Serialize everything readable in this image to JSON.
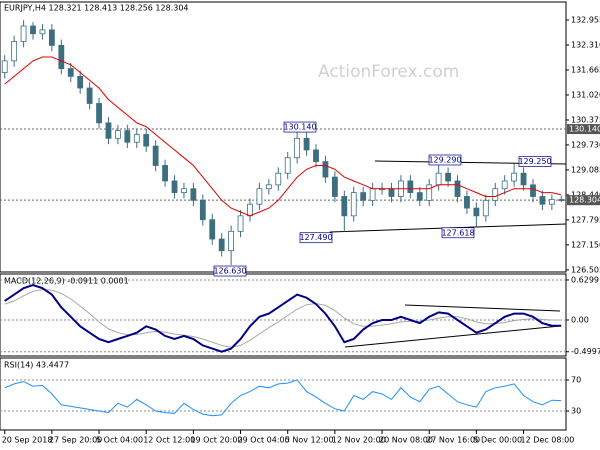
{
  "chart_data": [
    {
      "type": "candlestick",
      "title": "EURJPY,H4 128.321 128.413 128.256 128.304",
      "watermark": "ActionForex.com",
      "color": "#3d6e80",
      "categories": [
        "20 Sep 2018",
        null,
        null,
        null,
        null,
        "27 Sep 20:00",
        null,
        null,
        null,
        null,
        "5 Oct 04:00",
        null,
        null,
        null,
        null,
        "12 Oct 12:00",
        null,
        null,
        null,
        null,
        "19 Oct 20:00",
        null,
        null,
        null,
        null,
        "29 Oct 04:00",
        null,
        null,
        null,
        null,
        "5 Nov 12:00",
        null,
        null,
        null,
        null,
        "12 Nov 20:00",
        null,
        null,
        null,
        null,
        "20 Nov 08:00",
        null,
        null,
        null,
        null,
        "27 Nov 16:00",
        null,
        null,
        null,
        null,
        "5 Dec 00:00",
        null,
        null,
        null,
        null,
        "12 Dec 08:00",
        null,
        null,
        null,
        null
      ],
      "open": [
        131.6,
        131.9,
        132.4,
        132.8,
        132.6,
        132.7,
        132.3,
        131.7,
        131.5,
        131.2,
        130.8,
        130.3,
        129.9,
        130.1,
        129.8,
        130.0,
        129.7,
        129.2,
        128.8,
        128.5,
        128.6,
        128.3,
        127.8,
        127.3,
        127.0,
        127.5,
        127.9,
        128.2,
        128.6,
        128.7,
        129.0,
        129.4,
        129.9,
        129.6,
        129.3,
        128.9,
        128.4,
        127.9,
        128.5,
        128.3,
        128.6,
        128.6,
        128.4,
        128.8,
        128.5,
        128.3,
        128.7,
        129.0,
        128.8,
        128.4,
        128.1,
        127.9,
        128.3,
        128.6,
        128.8,
        129.0,
        128.7,
        128.4,
        128.2,
        128.321
      ],
      "high": [
        132.05,
        132.55,
        132.95,
        132.9,
        132.85,
        132.85,
        132.45,
        131.85,
        131.65,
        131.35,
        130.95,
        130.45,
        130.25,
        130.25,
        130.15,
        130.15,
        129.85,
        129.35,
        128.95,
        128.75,
        128.75,
        128.45,
        127.95,
        127.45,
        127.65,
        128.05,
        128.35,
        128.75,
        128.85,
        129.15,
        129.55,
        130.14,
        130.05,
        129.75,
        129.45,
        129.05,
        128.55,
        128.65,
        128.65,
        128.75,
        128.75,
        128.75,
        128.95,
        128.95,
        128.65,
        128.85,
        129.29,
        129.15,
        128.95,
        128.55,
        128.25,
        128.45,
        128.75,
        128.95,
        129.25,
        129.15,
        128.85,
        128.55,
        128.45,
        128.413
      ],
      "low": [
        131.45,
        131.75,
        132.25,
        132.45,
        132.45,
        132.15,
        131.55,
        131.35,
        131.05,
        130.65,
        130.15,
        129.75,
        129.75,
        129.65,
        129.65,
        129.55,
        129.05,
        128.65,
        128.35,
        128.35,
        128.15,
        127.65,
        127.15,
        126.85,
        126.63,
        127.35,
        127.75,
        128.05,
        128.45,
        128.55,
        128.85,
        129.25,
        129.45,
        129.15,
        128.75,
        128.25,
        127.49,
        127.75,
        128.15,
        128.15,
        128.45,
        128.25,
        128.25,
        128.35,
        128.15,
        128.15,
        128.55,
        128.65,
        128.25,
        127.95,
        127.618,
        127.75,
        128.15,
        128.45,
        128.65,
        128.55,
        128.25,
        128.05,
        128.05,
        128.256
      ],
      "close": [
        131.9,
        132.4,
        132.8,
        132.6,
        132.7,
        132.3,
        131.7,
        131.5,
        131.2,
        130.8,
        130.3,
        129.9,
        130.1,
        129.8,
        130.0,
        129.7,
        129.2,
        128.8,
        128.5,
        128.6,
        128.3,
        127.8,
        127.3,
        127.0,
        127.5,
        127.9,
        128.2,
        128.6,
        128.7,
        129.0,
        129.4,
        129.9,
        129.6,
        129.3,
        128.9,
        128.4,
        127.9,
        128.5,
        128.3,
        128.6,
        128.6,
        128.4,
        128.8,
        128.5,
        128.3,
        128.7,
        129.0,
        128.8,
        128.4,
        128.1,
        127.9,
        128.3,
        128.6,
        128.8,
        129.0,
        128.7,
        128.4,
        128.2,
        128.321,
        128.304
      ],
      "series": [
        {
          "color": "#e00000",
          "values": [
            131.3,
            131.5,
            131.7,
            131.9,
            132.0,
            132.0,
            131.9,
            131.8,
            131.6,
            131.4,
            131.2,
            130.9,
            130.7,
            130.5,
            130.3,
            130.2,
            130.0,
            129.8,
            129.6,
            129.4,
            129.2,
            128.9,
            128.6,
            128.3,
            128.1,
            128.0,
            127.9,
            128.0,
            128.1,
            128.3,
            128.6,
            128.9,
            129.1,
            129.2,
            129.2,
            129.1,
            128.9,
            128.8,
            128.7,
            128.6,
            128.6,
            128.6,
            128.6,
            128.6,
            128.6,
            128.6,
            128.7,
            128.7,
            128.7,
            128.6,
            128.5,
            128.4,
            128.4,
            128.5,
            128.6,
            128.6,
            128.6,
            128.5,
            128.5,
            128.44
          ]
        }
      ],
      "ylim": [
        126.45,
        133.42
      ],
      "yticks": [
        132.955,
        {
          "value": 132.31,
          "label": "132.310"
        },
        131.665,
        {
          "value": 131.02,
          "label": "131.020"
        },
        130.375,
        {
          "value": 129.73,
          "label": "129.730"
        },
        129.085,
        {
          "value": 128.44,
          "label": "128.440"
        },
        127.795,
        {
          "value": 127.15,
          "label": "127.150"
        },
        126.505
      ],
      "levels": [
        {
          "value": 130.14,
          "label": "130.140"
        },
        {
          "value": 128.304
        }
      ],
      "annotations": [
        {
          "value": 130.14,
          "label": "130.140"
        },
        {
          "value": 129.29,
          "label": "129.290"
        },
        {
          "value": 129.25,
          "label": "129.250"
        },
        {
          "value": 127.49,
          "label": "127.490"
        },
        {
          "value": 127.618,
          "label": "127.618"
        },
        {
          "value": 126.63,
          "label": "126.630"
        }
      ]
    },
    {
      "type": "line",
      "title": "MACD(12,26,9) -0.0911 0.0001",
      "series": [
        {
          "color": "#00008b",
          "values": [
            0.3,
            0.4,
            0.5,
            0.55,
            0.5,
            0.4,
            0.2,
            0.05,
            -0.1,
            -0.2,
            -0.3,
            -0.35,
            -0.3,
            -0.25,
            -0.2,
            -0.1,
            -0.15,
            -0.25,
            -0.3,
            -0.25,
            -0.3,
            -0.4,
            -0.45,
            -0.5,
            -0.45,
            -0.3,
            -0.1,
            0.05,
            0.1,
            0.2,
            0.3,
            0.4,
            0.35,
            0.25,
            0.1,
            -0.1,
            -0.35,
            -0.3,
            -0.15,
            -0.05,
            0.0,
            0.0,
            0.05,
            0.0,
            -0.05,
            0.05,
            0.12,
            0.1,
            0.0,
            -0.1,
            -0.2,
            -0.15,
            -0.05,
            0.05,
            0.1,
            0.1,
            0.05,
            -0.05,
            -0.09,
            -0.0911
          ]
        },
        {
          "color": "#a8a8a8",
          "values": [
            0.25,
            0.3,
            0.38,
            0.45,
            0.48,
            0.47,
            0.42,
            0.33,
            0.22,
            0.1,
            -0.03,
            -0.14,
            -0.2,
            -0.23,
            -0.23,
            -0.2,
            -0.18,
            -0.19,
            -0.22,
            -0.24,
            -0.26,
            -0.3,
            -0.35,
            -0.4,
            -0.43,
            -0.4,
            -0.32,
            -0.22,
            -0.12,
            -0.03,
            0.07,
            0.17,
            0.24,
            0.26,
            0.23,
            0.15,
            0.03,
            -0.06,
            -0.1,
            -0.1,
            -0.08,
            -0.06,
            -0.03,
            -0.02,
            -0.02,
            0.0,
            0.03,
            0.05,
            0.05,
            0.02,
            -0.03,
            -0.06,
            -0.06,
            -0.04,
            -0.01,
            0.01,
            0.02,
            0.01,
            0.0,
            0.0001
          ]
        }
      ],
      "ylim": [
        -0.567,
        0.724
      ],
      "yticks": [
        0.6299,
        {
          "value": 0,
          "label": "0.00"
        },
        -0.4997
      ]
    },
    {
      "type": "line",
      "title": "RSI(14) 43.4477",
      "series": [
        {
          "color": "#1e90ff",
          "values": [
            60,
            65,
            68,
            62,
            63,
            52,
            38,
            36,
            34,
            32,
            30,
            28,
            40,
            35,
            45,
            38,
            30,
            28,
            27,
            40,
            32,
            26,
            24,
            25,
            40,
            50,
            55,
            62,
            60,
            65,
            66,
            70,
            55,
            48,
            40,
            33,
            30,
            50,
            45,
            55,
            52,
            45,
            60,
            48,
            42,
            58,
            62,
            52,
            42,
            38,
            35,
            55,
            60,
            62,
            65,
            50,
            42,
            38,
            44,
            43.4477
          ]
        }
      ],
      "ylim": [
        5.5,
        98.4
      ],
      "yticks": [
        70,
        30
      ]
    }
  ]
}
